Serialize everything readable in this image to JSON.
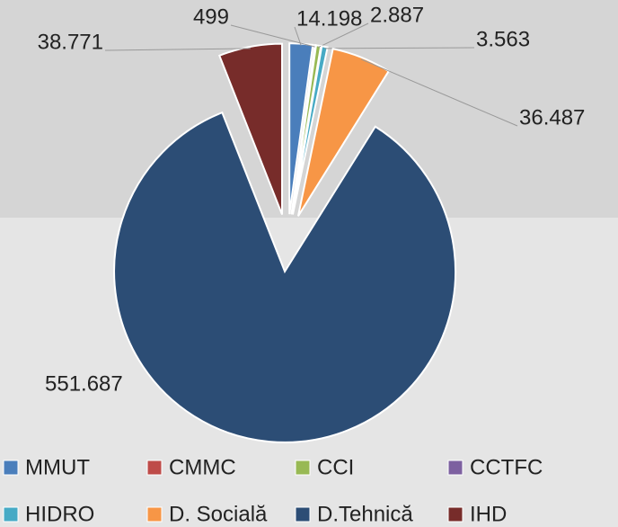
{
  "chart_data": {
    "type": "pie",
    "categories": [
      "MMUT",
      "CMMC",
      "CCI",
      "CCTFC",
      "HIDRO",
      "D. Socială",
      "D.Tehnică",
      "IHD"
    ],
    "values": [
      14198,
      499,
      2887,
      null,
      3563,
      36487,
      551687,
      38771
    ],
    "value_labels": [
      "14.198",
      "499",
      "2.887",
      null,
      "3.563",
      "36.487",
      "551.687",
      "38.771"
    ],
    "colors": [
      "#4a7ebb",
      "#be4b48",
      "#98b954",
      "#7d60a0",
      "#46aac5",
      "#f79646",
      "#2c4d75",
      "#772c2a"
    ],
    "legend": "bottom"
  }
}
